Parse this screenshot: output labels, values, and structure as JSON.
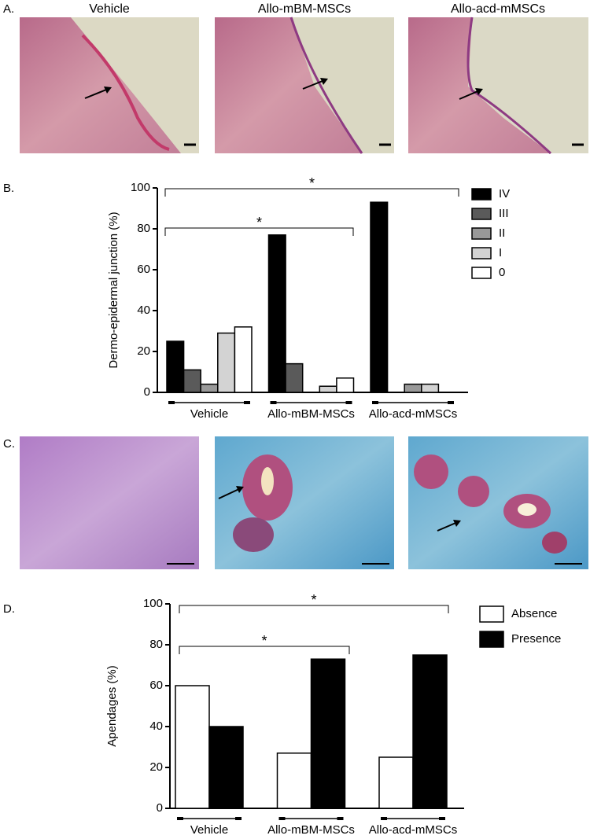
{
  "figure": {
    "panel_labels": [
      "A.",
      "B.",
      "C.",
      "D."
    ],
    "image_titles": [
      "Vehicle",
      "Allo-mBM-MSCs",
      "Allo-acd-mMSCs"
    ]
  },
  "chart_data": [
    {
      "type": "bar",
      "ylabel": "Dermo-epidermal junction (%)",
      "categories": [
        "Vehicle",
        "Allo-mBM-MSCs",
        "Allo-acd-mMSCs"
      ],
      "series": [
        {
          "name": "IV",
          "color": "#000000",
          "values": [
            25,
            77,
            93
          ]
        },
        {
          "name": "III",
          "color": "#5a5a5a",
          "values": [
            11,
            14,
            0
          ]
        },
        {
          "name": "II",
          "color": "#999999",
          "values": [
            4,
            0,
            4
          ]
        },
        {
          "name": "I",
          "color": "#d3d3d3",
          "values": [
            29,
            3,
            4
          ]
        },
        {
          "name": "0",
          "color": "#ffffff",
          "values": [
            32,
            7,
            0
          ]
        }
      ],
      "ylim": [
        0,
        100
      ],
      "yticks": [
        0,
        20,
        40,
        60,
        80,
        100
      ],
      "annotations": [
        "*",
        "*"
      ]
    },
    {
      "type": "bar",
      "ylabel": "Apendages (%)",
      "categories": [
        "Vehicle",
        "Allo-mBM-MSCs",
        "Allo-acd-mMSCs"
      ],
      "series": [
        {
          "name": "Absence",
          "color": "#ffffff",
          "values": [
            60,
            27,
            25
          ]
        },
        {
          "name": "Presence",
          "color": "#000000",
          "values": [
            40,
            73,
            75
          ]
        }
      ],
      "ylim": [
        0,
        100
      ],
      "yticks": [
        0,
        20,
        40,
        60,
        80,
        100
      ],
      "annotations": [
        "*",
        "*"
      ]
    }
  ]
}
